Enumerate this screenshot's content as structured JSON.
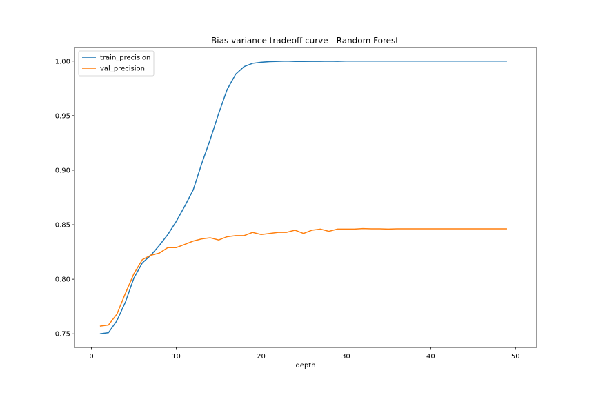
{
  "chart_data": {
    "type": "line",
    "title": "Bias-variance tradeoff curve - Random Forest",
    "xlabel": "depth",
    "ylabel": "",
    "xlim": [
      -2,
      52.5
    ],
    "ylim": [
      0.7375,
      1.0125
    ],
    "xticks": [
      0,
      10,
      20,
      30,
      40,
      50
    ],
    "yticks": [
      0.75,
      0.8,
      0.85,
      0.9,
      0.95,
      1.0
    ],
    "xtick_labels": [
      "0",
      "10",
      "20",
      "30",
      "40",
      "50"
    ],
    "ytick_labels": [
      "0.75",
      "0.80",
      "0.85",
      "0.90",
      "0.95",
      "1.00"
    ],
    "grid": false,
    "legend_position": "top-left",
    "x": [
      1,
      2,
      3,
      4,
      5,
      6,
      7,
      8,
      9,
      10,
      11,
      12,
      13,
      14,
      15,
      16,
      17,
      18,
      19,
      20,
      21,
      22,
      23,
      24,
      25,
      26,
      27,
      28,
      29,
      30,
      31,
      32,
      33,
      34,
      35,
      36,
      37,
      38,
      39,
      40,
      41,
      42,
      43,
      44,
      45,
      46,
      47,
      48,
      49
    ],
    "series": [
      {
        "name": "train_precision",
        "color": "#1f77b4",
        "values": [
          0.75,
          0.751,
          0.762,
          0.779,
          0.801,
          0.815,
          0.822,
          0.831,
          0.841,
          0.853,
          0.867,
          0.882,
          0.906,
          0.928,
          0.952,
          0.974,
          0.988,
          0.995,
          0.998,
          0.999,
          0.9995,
          0.9998,
          1.0,
          0.9997,
          0.9997,
          0.9998,
          0.9998,
          0.9999,
          0.9998,
          1.0,
          1.0,
          1.0,
          1.0,
          1.0,
          1.0,
          1.0,
          1.0,
          1.0,
          1.0,
          1.0,
          1.0,
          1.0,
          1.0,
          1.0,
          1.0,
          1.0,
          1.0,
          1.0,
          1.0
        ]
      },
      {
        "name": "val_precision",
        "color": "#ff7f0e",
        "values": [
          0.757,
          0.758,
          0.768,
          0.787,
          0.805,
          0.818,
          0.822,
          0.824,
          0.829,
          0.829,
          0.832,
          0.835,
          0.837,
          0.838,
          0.836,
          0.839,
          0.84,
          0.84,
          0.843,
          0.841,
          0.842,
          0.843,
          0.843,
          0.845,
          0.842,
          0.845,
          0.846,
          0.844,
          0.846,
          0.846,
          0.846,
          0.8465,
          0.8462,
          0.8462,
          0.846,
          0.8462,
          0.8462,
          0.8462,
          0.8462,
          0.8462,
          0.8462,
          0.8462,
          0.8462,
          0.8462,
          0.8462,
          0.8462,
          0.8462,
          0.8462,
          0.8462
        ]
      }
    ]
  }
}
